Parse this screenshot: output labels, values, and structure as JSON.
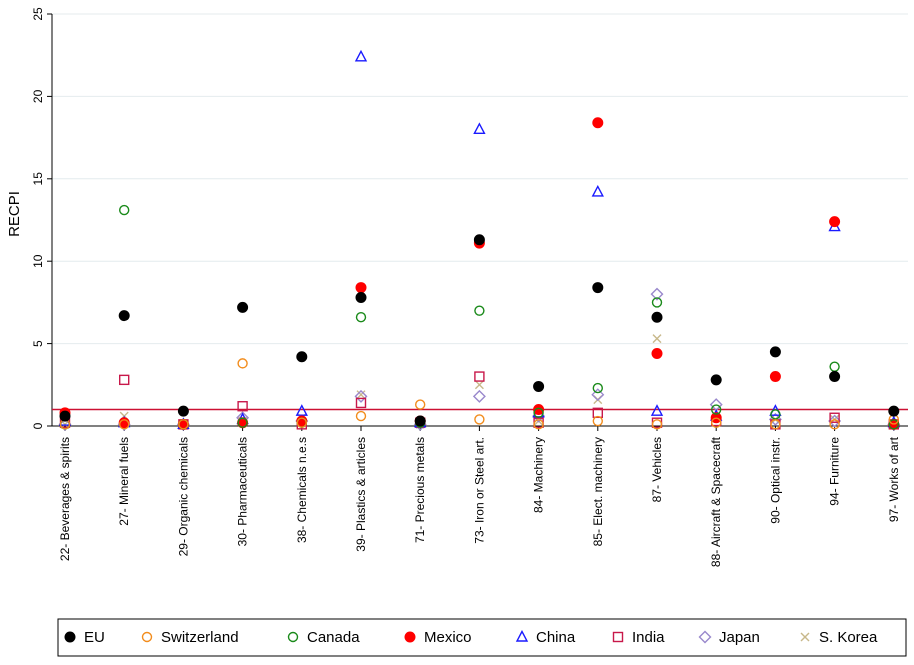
{
  "chart_data": {
    "type": "scatter",
    "ylabel": "RECPI",
    "xlabel": "",
    "ylim": [
      0,
      25
    ],
    "yticks": [
      0,
      5,
      10,
      15,
      20,
      25
    ],
    "grid": "horizontal",
    "reference_line": {
      "y": 1,
      "color": "#cc1133"
    },
    "legend_position": "bottom",
    "categories": [
      "22- Beverages & spirits",
      "27- Mineral fuels",
      "29- Organic chemicals",
      "30- Pharmaceuticals",
      "38- Chemicals n.e.s",
      "39- Plastics & articles",
      "71- Precious metals",
      "73- Iron or Steel art.",
      "84- Machinery",
      "85- Elect. machinery",
      "87- Vehicles",
      "88- Aircraft & Spacecraft",
      "90- Optical instr.",
      "94- Furniture",
      "97- Works of art"
    ],
    "series": [
      {
        "name": "EU",
        "marker": "filled-circle",
        "color": "#000000",
        "values": [
          0.6,
          6.7,
          0.9,
          7.2,
          4.2,
          7.8,
          0.3,
          11.3,
          2.4,
          8.4,
          6.6,
          2.8,
          4.5,
          3.0,
          0.9
        ]
      },
      {
        "name": "Switzerland",
        "marker": "hollow-circle",
        "color": "#f28c1c",
        "values": [
          0.1,
          0.1,
          0.1,
          3.8,
          0.2,
          0.6,
          1.3,
          0.4,
          0.1,
          0.3,
          0.1,
          0.2,
          0.1,
          0.1,
          0.4
        ]
      },
      {
        "name": "Canada",
        "marker": "hollow-circle",
        "color": "#1a8a1a",
        "values": [
          0.1,
          13.1,
          0.1,
          0.2,
          0.2,
          6.6,
          0.2,
          7.0,
          0.8,
          2.3,
          7.5,
          1.0,
          0.7,
          3.6,
          0.1
        ]
      },
      {
        "name": "Mexico",
        "marker": "filled-circle",
        "color": "#ff0000",
        "values": [
          0.8,
          0.2,
          0.1,
          0.2,
          0.3,
          8.4,
          0.3,
          11.1,
          1.0,
          18.4,
          4.4,
          0.5,
          3.0,
          12.4,
          0.1
        ]
      },
      {
        "name": "China",
        "marker": "hollow-triangle",
        "color": "#1a1aff",
        "values": [
          0.3,
          0.2,
          0.1,
          0.4,
          0.9,
          22.4,
          0.2,
          18.0,
          0.8,
          14.2,
          0.9,
          0.6,
          0.9,
          12.1,
          0.2
        ]
      },
      {
        "name": "India",
        "marker": "hollow-square",
        "color": "#c8184a",
        "values": [
          0.2,
          2.8,
          0.1,
          1.2,
          0.1,
          1.4,
          0.2,
          3.0,
          0.2,
          0.8,
          0.2,
          0.3,
          0.1,
          0.5,
          0.1
        ]
      },
      {
        "name": "Japan",
        "marker": "hollow-diamond",
        "color": "#9988cc",
        "values": [
          0.1,
          0.1,
          0.1,
          0.5,
          0.3,
          1.8,
          0.1,
          1.8,
          0.6,
          1.9,
          8.0,
          1.3,
          0.4,
          0.3,
          0.1
        ]
      },
      {
        "name": "S. Korea",
        "marker": "cross",
        "color": "#c8b88a",
        "values": [
          0.1,
          0.6,
          0.1,
          0.3,
          0.5,
          1.9,
          0.1,
          2.5,
          0.3,
          1.6,
          5.3,
          0.6,
          0.4,
          0.4,
          0.1
        ]
      }
    ]
  }
}
